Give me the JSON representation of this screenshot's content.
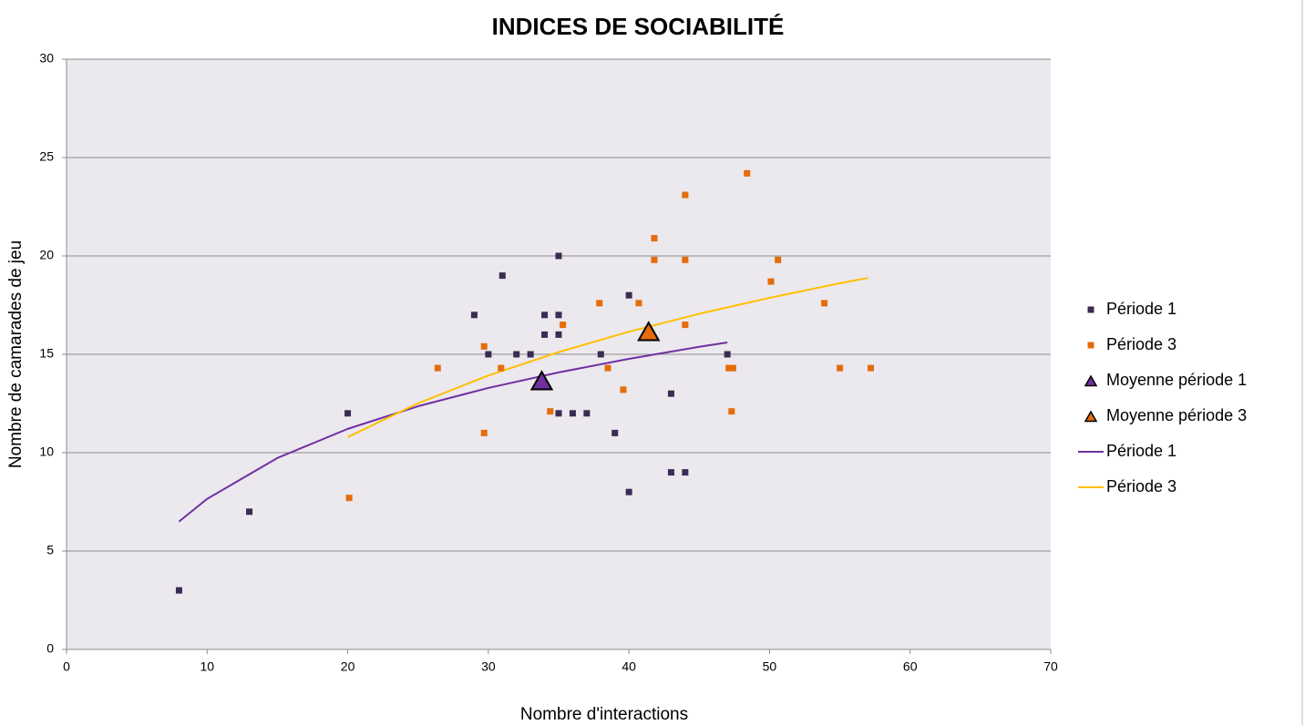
{
  "chart_data": {
    "type": "scatter",
    "title": "INDICES DE SOCIABILITÉ",
    "xlabel": "Nombre d'interactions",
    "ylabel": "Nombre de camarades de jeu",
    "xlim": [
      0,
      70
    ],
    "ylim": [
      0,
      30
    ],
    "xticks": [
      0,
      10,
      20,
      30,
      40,
      50,
      60,
      70
    ],
    "yticks": [
      0,
      5,
      10,
      15,
      20,
      25,
      30
    ],
    "grid": true,
    "legend": "right",
    "series": [
      {
        "name": "Période 1",
        "style": "square",
        "color": "#3b2b52",
        "x": [
          8,
          13,
          20,
          29,
          30,
          31,
          32,
          33,
          34,
          34,
          35,
          35,
          35,
          35,
          36,
          37,
          38,
          39,
          40,
          40,
          43,
          43,
          44,
          47
        ],
        "values": [
          3,
          7,
          12,
          17,
          15,
          19,
          15,
          15,
          16,
          17,
          20,
          17,
          16,
          12,
          12,
          12,
          15,
          11,
          18,
          8,
          13,
          9,
          9,
          15
        ]
      },
      {
        "name": "Période 3",
        "style": "square",
        "color": "#e46c0a",
        "x": [
          20.1,
          26.4,
          29.7,
          29.7,
          30.9,
          34.4,
          35.3,
          37.9,
          38.5,
          39.6,
          40.7,
          41.8,
          41.8,
          44,
          44,
          44,
          47.1,
          47.4,
          47.3,
          48.4,
          50.1,
          50.6,
          53.9,
          55,
          57.2
        ],
        "values": [
          7.7,
          14.3,
          15.4,
          11,
          14.3,
          12.1,
          16.5,
          17.6,
          14.3,
          13.2,
          17.6,
          20.9,
          19.8,
          23.1,
          19.8,
          16.5,
          14.3,
          14.3,
          12.1,
          24.2,
          18.7,
          19.8,
          17.6,
          14.3,
          14.3
        ]
      },
      {
        "name": "Moyenne période 1",
        "style": "triangle",
        "color": "#7030a0",
        "x": [
          33.8
        ],
        "values": [
          13.6
        ]
      },
      {
        "name": "Moyenne période 3",
        "style": "triangle",
        "color": "#e46c0a",
        "x": [
          41.4
        ],
        "values": [
          16.1
        ]
      },
      {
        "name": "Période 1",
        "style": "line",
        "color": "#7030a0",
        "x": [
          8,
          10,
          15,
          20,
          25,
          30,
          35,
          40,
          45,
          47
        ],
        "values": [
          6.5,
          7.65,
          9.73,
          11.21,
          12.36,
          13.29,
          14.08,
          14.77,
          15.38,
          15.6
        ]
      },
      {
        "name": "Période 3",
        "style": "line",
        "color": "#ffc000",
        "x": [
          20,
          25,
          30,
          35,
          40,
          45,
          50,
          55,
          57
        ],
        "values": [
          10.79,
          12.51,
          13.92,
          15.11,
          16.15,
          17.06,
          17.87,
          18.61,
          18.88
        ]
      }
    ]
  }
}
